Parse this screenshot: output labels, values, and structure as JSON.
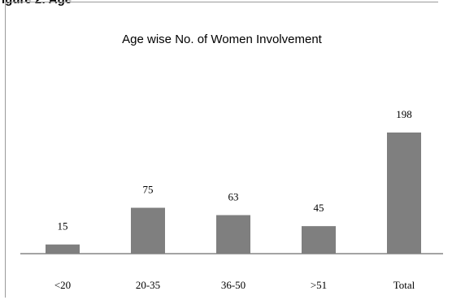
{
  "caption": "igure 2: Age",
  "chart_data": {
    "type": "bar",
    "title": "Age wise No. of Women Involvement",
    "xlabel": "",
    "ylabel": "",
    "categories": [
      "<20",
      "20-35",
      "36-50",
      ">51",
      "Total"
    ],
    "values": [
      15,
      75,
      63,
      45,
      198
    ],
    "ylim": [
      0,
      198
    ],
    "grid": false,
    "legend": "none",
    "bar_color": "#7f7f7f",
    "axis_color": "#868686"
  }
}
